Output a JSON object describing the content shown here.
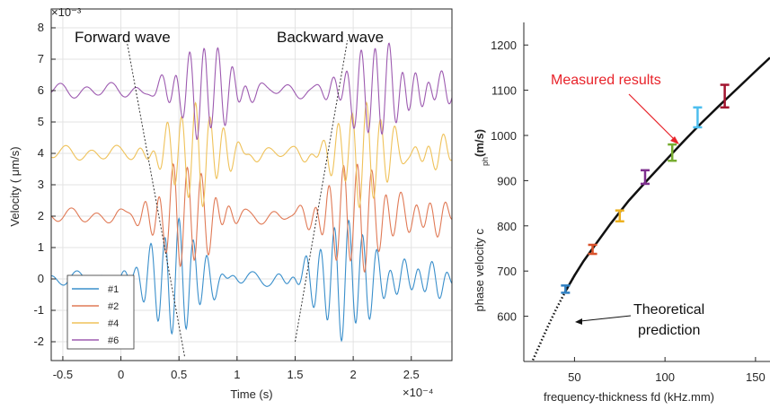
{
  "chart_data": [
    {
      "type": "line",
      "ylabel": "Velocity ( μm/s)",
      "xlabel": "Time (s)",
      "x_exponent": "×10⁻⁴",
      "y_exponent": "×10⁻³",
      "xlim": [
        -0.6,
        2.85
      ],
      "ylim": [
        -2.6,
        8.6
      ],
      "xticks": [
        "-0.5",
        "0",
        "0.5",
        "1",
        "1.5",
        "2",
        "2.5"
      ],
      "yticks": [
        "-2",
        "-1",
        "0",
        "1",
        "2",
        "3",
        "4",
        "5",
        "6",
        "7",
        "8"
      ],
      "grid": true,
      "legend_position": "bottom-left",
      "series": [
        {
          "name": "#1",
          "color": "#3a8fcb",
          "offset": 0
        },
        {
          "name": "#2",
          "color": "#e07a56",
          "offset": 2
        },
        {
          "name": "#4",
          "color": "#efc25a",
          "offset": 4
        },
        {
          "name": "#6",
          "color": "#9d5bb0",
          "offset": 6
        }
      ],
      "annotations": [
        "Forward wave",
        "Backward wave"
      ]
    },
    {
      "type": "scatter",
      "xlabel": "frequency-thickness fd (kHz.mm)",
      "ylabel": "phase velocity c",
      "ylabel_subscript": "ph",
      "ylabel_unit": "(m/s)",
      "xlim": [
        22,
        158
      ],
      "ylim": [
        500,
        1250
      ],
      "xticks": [
        "50",
        "100",
        "150"
      ],
      "yticks": [
        "600",
        "700",
        "800",
        "900",
        "1000",
        "1100",
        "1200"
      ],
      "grid": false,
      "points": [
        {
          "x": 45,
          "y": 660,
          "err": 8,
          "color": "#2f7fc1"
        },
        {
          "x": 60,
          "y": 748,
          "err": 10,
          "color": "#d9522b"
        },
        {
          "x": 75,
          "y": 822,
          "err": 12,
          "color": "#edb120"
        },
        {
          "x": 89,
          "y": 908,
          "err": 15,
          "color": "#7e2f8e"
        },
        {
          "x": 104,
          "y": 962,
          "err": 18,
          "color": "#77ac30"
        },
        {
          "x": 118,
          "y": 1040,
          "err": 22,
          "color": "#4dbeee"
        },
        {
          "x": 133,
          "y": 1087,
          "err": 25,
          "color": "#a2142f"
        }
      ],
      "curve": {
        "x": [
          27,
          30,
          35,
          40,
          45,
          50,
          55,
          60,
          70,
          80,
          90,
          100,
          110,
          120,
          130,
          140,
          150,
          158
        ],
        "y": [
          503,
          530,
          575,
          617,
          655,
          690,
          722,
          750,
          805,
          856,
          900,
          943,
          986,
          1027,
          1066,
          1104,
          1142,
          1172
        ]
      },
      "annotations": {
        "measured": "Measured results",
        "theory_line1": "Theoretical",
        "theory_line2": "prediction"
      }
    }
  ]
}
